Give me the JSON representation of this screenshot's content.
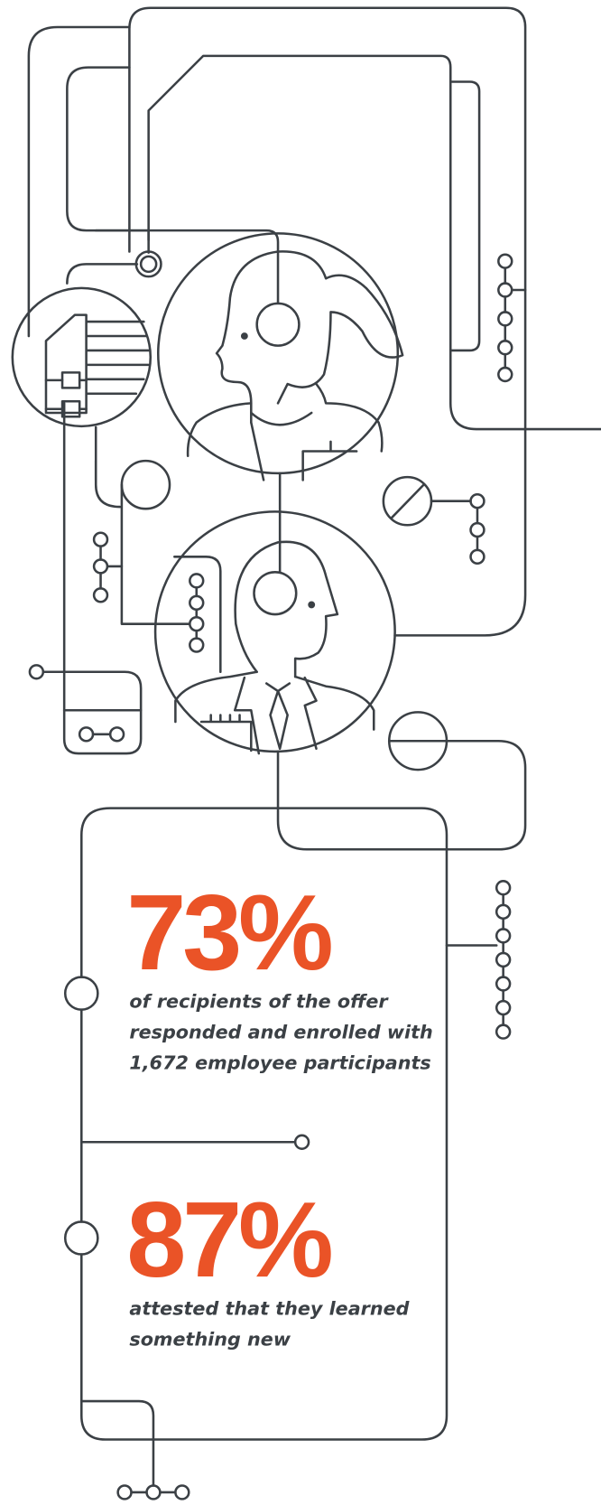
{
  "stats": [
    {
      "value": "73%",
      "description": [
        "of recipients of the offer",
        "responded and enrolled with",
        "1,672 employee participants"
      ]
    },
    {
      "value": "87%",
      "description": [
        "attested that they learned",
        "something new"
      ]
    }
  ]
}
